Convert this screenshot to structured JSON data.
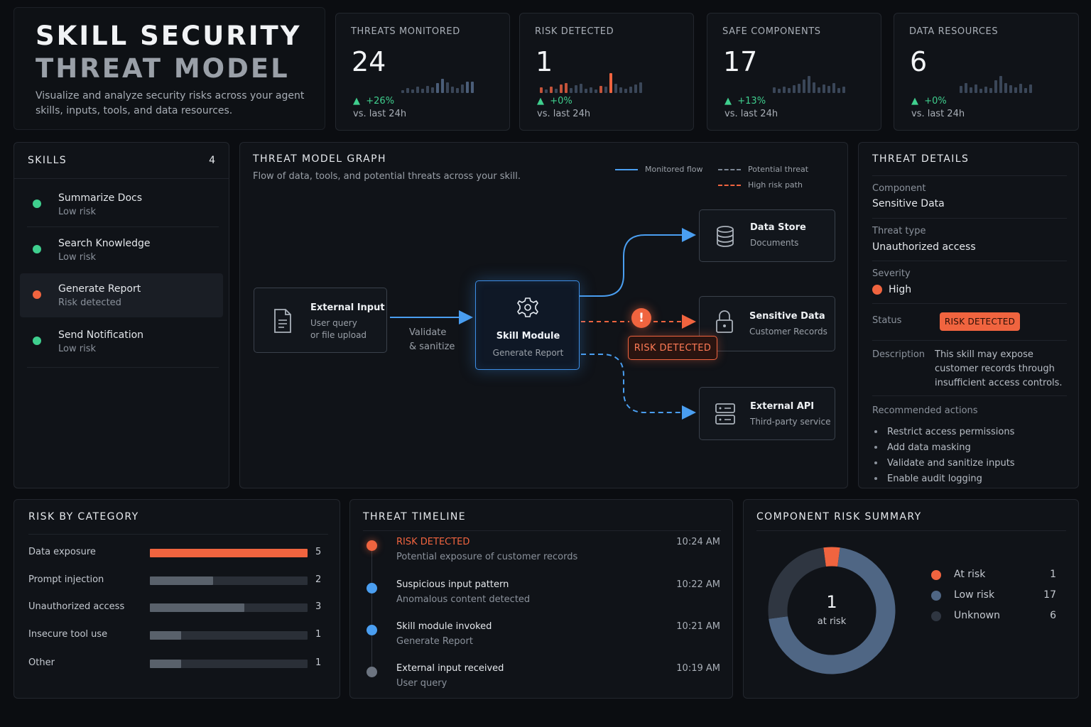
{
  "header": {
    "title_line1": "SKILL SECURITY",
    "title_line2": "THREAT MODEL",
    "subtitle": "Visualize and analyze security risks across your agent skills, inputs, tools, and data resources."
  },
  "kpis": [
    {
      "label": "THREATS MONITORED",
      "value": "24",
      "delta": "+26%",
      "vs": "vs. last 24h"
    },
    {
      "label": "RISK DETECTED",
      "value": "1",
      "delta": "+0%",
      "vs": "vs. last 24h"
    },
    {
      "label": "SAFE COMPONENTS",
      "value": "17",
      "delta": "+13%",
      "vs": "vs. last 24h"
    },
    {
      "label": "DATA RESOURCES",
      "value": "6",
      "delta": "+0%",
      "vs": "vs. last 24h"
    }
  ],
  "skills": {
    "title": "SKILLS",
    "count": "4",
    "items": [
      {
        "name": "Summarize Docs",
        "risk": "Low risk",
        "status_color": "#3fcf8e"
      },
      {
        "name": "Search Knowledge",
        "risk": "Low risk",
        "status_color": "#3fcf8e"
      },
      {
        "name": "Generate Report",
        "risk": "Risk detected",
        "status_color": "#f0643f"
      },
      {
        "name": "Send Notification",
        "risk": "Low risk",
        "status_color": "#3fcf8e"
      }
    ]
  },
  "graph": {
    "title": "THREAT MODEL GRAPH",
    "subtitle": "Flow of data, tools, and potential threats across your skill.",
    "legend": {
      "monitored": "Monitored flow",
      "potential": "Potential threat",
      "high_risk": "High risk path"
    },
    "nodes": {
      "input": {
        "title": "External Input",
        "sub1": "User query",
        "sub2": "or file upload",
        "icon": "document-icon"
      },
      "skill": {
        "title": "Skill Module",
        "sub": "Generate Report",
        "icon": "gear-icon"
      },
      "datastore": {
        "title": "Data Store",
        "sub": "Documents",
        "icon": "database-icon"
      },
      "sensitive": {
        "title": "Sensitive Data",
        "sub": "Customer Records",
        "icon": "lock-icon"
      },
      "api": {
        "title": "External API",
        "sub": "Third-party service",
        "icon": "server-icon"
      }
    },
    "edge_label_1": "Validate",
    "edge_label_2": "& sanitize",
    "warning_glyph": "!",
    "risk_tag": "RISK DETECTED"
  },
  "details": {
    "title": "THREAT DETAILS",
    "component_label": "Component",
    "component_value": "Sensitive Data",
    "threat_type_label": "Threat type",
    "threat_type_value": "Unauthorized access",
    "severity_label": "Severity",
    "severity_value": "High",
    "status_label": "Status",
    "status_value": "RISK DETECTED",
    "description_label": "Description",
    "description_value": "This skill may expose customer records through insufficient access controls.",
    "actions_label": "Recommended actions",
    "actions": [
      "Restrict access permissions",
      "Add data masking",
      "Validate and sanitize inputs",
      "Enable audit logging"
    ]
  },
  "risk_by_category": {
    "title": "RISK BY CATEGORY",
    "max": 5,
    "items": [
      {
        "label": "Data exposure",
        "count": 5,
        "highlight": true
      },
      {
        "label": "Prompt injection",
        "count": 2,
        "highlight": false
      },
      {
        "label": "Unauthorized access",
        "count": 3,
        "highlight": false
      },
      {
        "label": "Insecure tool use",
        "count": 1,
        "highlight": false
      },
      {
        "label": "Other",
        "count": 1,
        "highlight": false
      }
    ]
  },
  "timeline": {
    "title": "THREAT TIMELINE",
    "events": [
      {
        "title": "RISK DETECTED",
        "desc": "Potential exposure of customer records",
        "time": "10:24 AM",
        "color": "#f0643f",
        "alert": true
      },
      {
        "title": "Suspicious input pattern",
        "desc": "Anomalous content detected",
        "time": "10:22 AM",
        "color": "#4a9ef0",
        "alert": false
      },
      {
        "title": "Skill module invoked",
        "desc": "Generate Report",
        "time": "10:21 AM",
        "color": "#4a9ef0",
        "alert": false
      },
      {
        "title": "External input received",
        "desc": "User query",
        "time": "10:19 AM",
        "color": "#6c7480",
        "alert": false
      }
    ]
  },
  "summary": {
    "title": "COMPONENT RISK SUMMARY",
    "center_value": "1",
    "center_label": "at risk",
    "items": [
      {
        "label": "At risk",
        "value": 1,
        "color": "#f0643f"
      },
      {
        "label": "Low risk",
        "value": 17,
        "color": "#4f6684"
      },
      {
        "label": "Unknown",
        "value": 6,
        "color": "#2f3641"
      }
    ]
  },
  "colors": {
    "accent_blue": "#3d8ee6",
    "risk_orange": "#f0643f",
    "safe_green": "#3fcf8e"
  }
}
